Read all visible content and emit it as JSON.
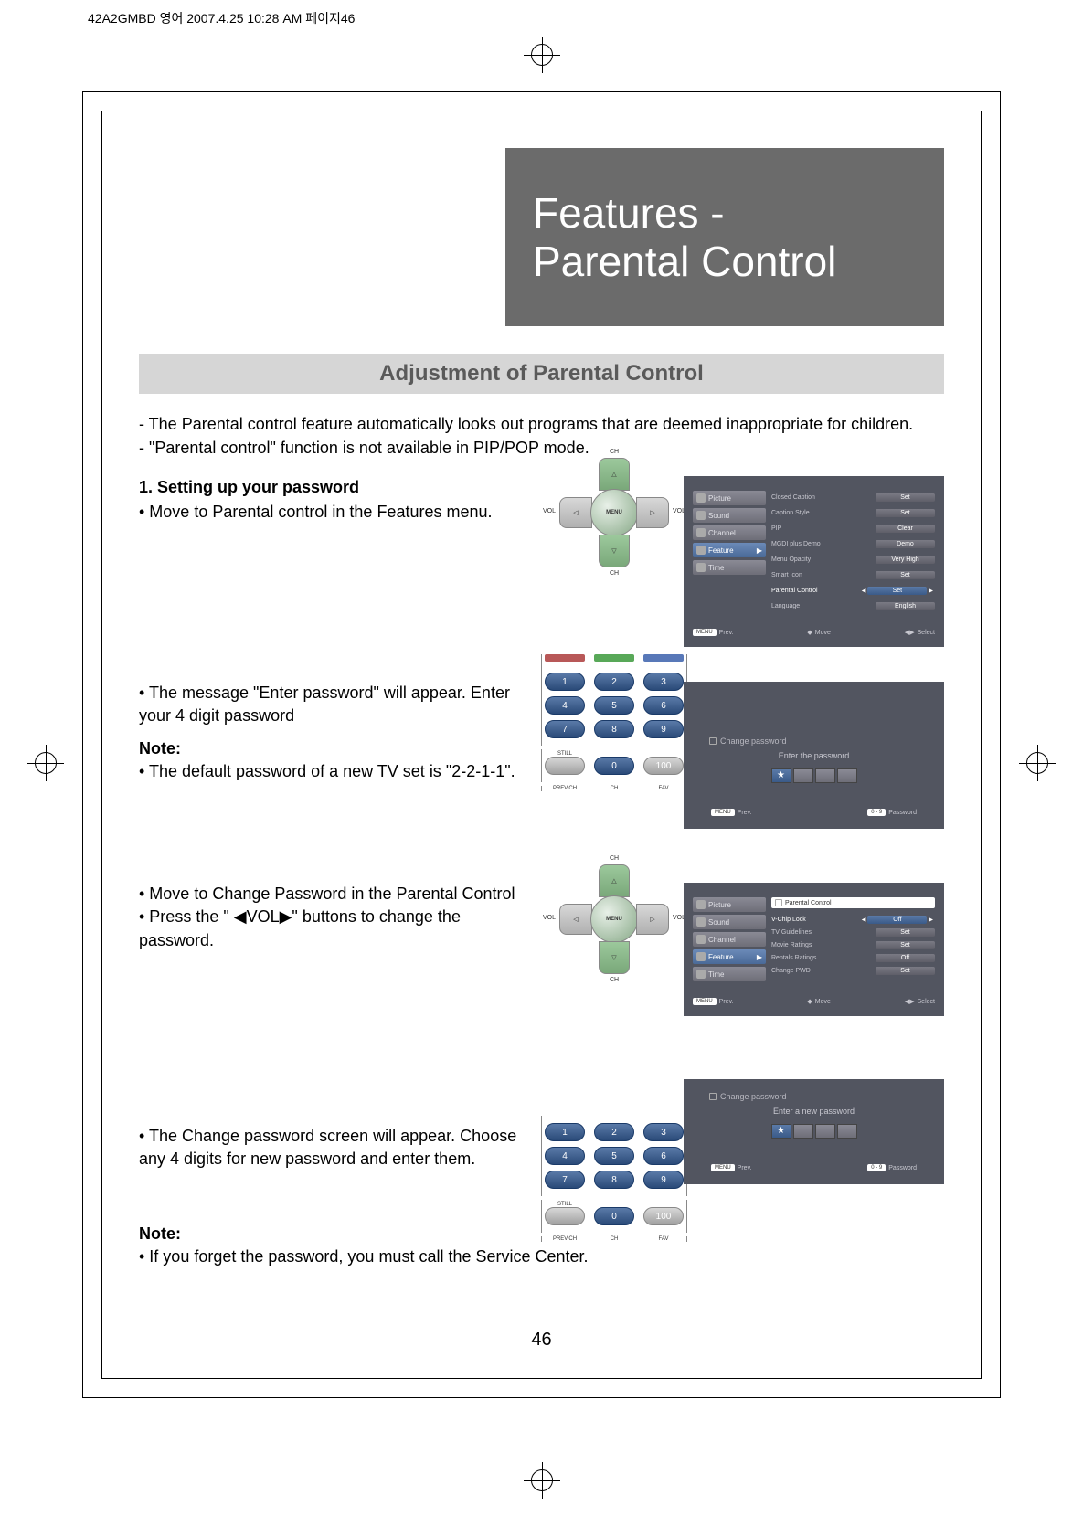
{
  "header_text": "42A2GMBD 영어  2007.4.25 10:28 AM 페이지46",
  "title_line1": "Features -",
  "title_line2": "Parental Control",
  "section_header": "Adjustment of Parental Control",
  "intro1": "- The Parental control feature automatically looks out programs that are deemed inappropriate for children.",
  "intro2": "- \"Parental control\" function is not available in PIP/POP mode.",
  "step1_title": "1. Setting up your password",
  "step1_text": "• Move to Parental control in the Features menu.",
  "step2_text1": "• The message \"Enter password\" will appear. Enter your 4 digit password",
  "step2_note_label": "Note:",
  "step2_note_text": "• The default password of a new TV set is \"2-2-1-1\".",
  "step3_text1": "• Move to Change Password in the Parental Control",
  "step3_text2": "• Press the \" ◀VOL▶\" buttons to change the password.",
  "step4_text": "• The Change password screen will appear. Choose any 4 digits for new password and enter them.",
  "final_note_label": "Note:",
  "final_note_text": "• If you forget the password, you must call the Service Center.",
  "page_number": "46",
  "dpad": {
    "menu": "MENU",
    "ch": "CH",
    "vol": "VOL",
    "up": "△",
    "down": "▽",
    "left": "◁",
    "right": "▷"
  },
  "keypad": {
    "color_red": "#b85858",
    "color_green": "#58a858",
    "color_blue": "#5878b8",
    "nums": [
      "1",
      "2",
      "3",
      "4",
      "5",
      "6",
      "7",
      "8",
      "9"
    ],
    "still": "STILL",
    "zero": "0",
    "hundred": "100",
    "prevch": "PREV.CH",
    "chlabel": "CH",
    "fav": "FAV"
  },
  "osd1": {
    "left_items": [
      {
        "label": "Picture",
        "active": false
      },
      {
        "label": "Sound",
        "active": false
      },
      {
        "label": "Channel",
        "active": false
      },
      {
        "label": "Feature",
        "active": true
      },
      {
        "label": "Time",
        "active": false
      }
    ],
    "rows": [
      {
        "label": "Closed Caption",
        "value": "Set",
        "active": false
      },
      {
        "label": "Caption Style",
        "value": "Set",
        "active": false
      },
      {
        "label": "PIP",
        "value": "Clear",
        "active": false
      },
      {
        "label": "MGDI plus Demo",
        "value": "Demo",
        "active": false
      },
      {
        "label": "Menu Opacity",
        "value": "Very High",
        "active": false
      },
      {
        "label": "Smart Icon",
        "value": "Set",
        "active": false
      },
      {
        "label": "Parental Control",
        "value": "Set",
        "active": true
      },
      {
        "label": "Language",
        "value": "English",
        "active": false
      }
    ],
    "footer": {
      "menu": "MENU",
      "prev": "Prev.",
      "move": "Move",
      "select": "Select"
    }
  },
  "osd2": {
    "title": "Change password",
    "subtitle": "Enter the password",
    "star": "★",
    "footer": {
      "menu": "MENU",
      "prev": "Prev.",
      "range": "0 - 9",
      "password": "Password"
    }
  },
  "osd3": {
    "left_items": [
      {
        "label": "Picture",
        "active": false
      },
      {
        "label": "Sound",
        "active": false
      },
      {
        "label": "Channel",
        "active": false
      },
      {
        "label": "Feature",
        "active": true
      },
      {
        "label": "Time",
        "active": false
      }
    ],
    "right_title": "Parental Control",
    "rows": [
      {
        "label": "V-Chip Lock",
        "value": "Off",
        "active": true
      },
      {
        "label": "TV Guidelines",
        "value": "Set",
        "active": false
      },
      {
        "label": "Movie Ratings",
        "value": "Set",
        "active": false
      },
      {
        "label": "Rentals Ratings",
        "value": "Off",
        "active": false
      },
      {
        "label": "Change PWD",
        "value": "Set",
        "active": false
      }
    ],
    "footer": {
      "menu": "MENU",
      "prev": "Prev.",
      "move": "Move",
      "select": "Select"
    }
  },
  "osd4": {
    "title": "Change password",
    "subtitle": "Enter a new password",
    "star": "★",
    "footer": {
      "menu": "MENU",
      "prev": "Prev.",
      "range": "0 - 9",
      "password": "Password"
    }
  },
  "colors": {
    "title_bg": "#6b6b6b",
    "section_bg": "#d6d6d6",
    "osd_bg": "#525560"
  }
}
